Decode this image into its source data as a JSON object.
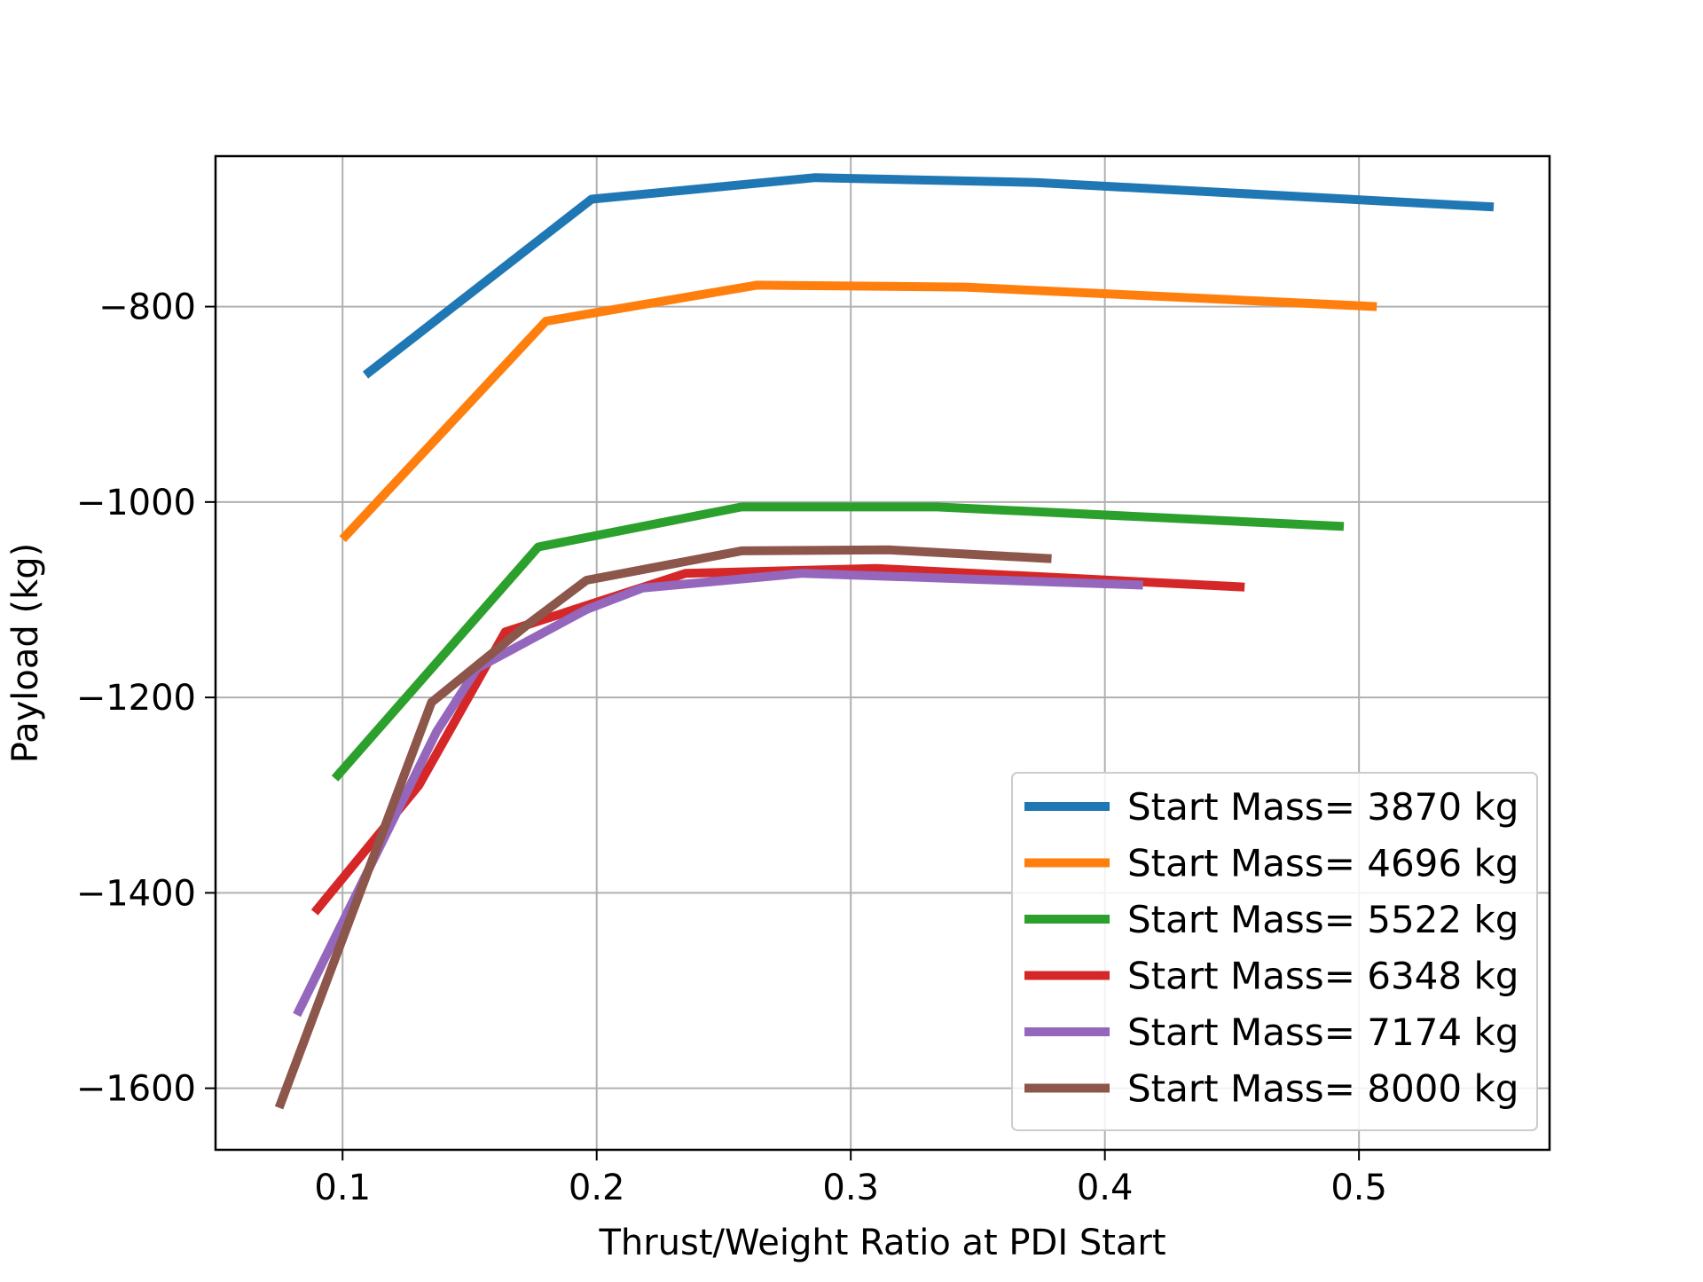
{
  "chart_data": {
    "type": "line",
    "title": "",
    "xlabel": "Thrust/Weight Ratio at PDI Start",
    "ylabel": "Payload (kg)",
    "xlim": [
      0.05,
      0.575
    ],
    "ylim": [
      -1663,
      -646
    ],
    "xticks": [
      0.1,
      0.2,
      0.3,
      0.4,
      0.5
    ],
    "xtick_labels": [
      "0.1",
      "0.2",
      "0.3",
      "0.4",
      "0.5"
    ],
    "yticks": [
      -1600,
      -1400,
      -1200,
      -1000,
      -800
    ],
    "ytick_labels": [
      "−1600",
      "−1400",
      "−1200",
      "−1000",
      "−800"
    ],
    "grid": true,
    "legend_position": "lower-right",
    "series": [
      {
        "name": "Start Mass= 3870 kg",
        "color": "#1f77b4",
        "points": [
          [
            0.109,
            -870
          ],
          [
            0.198,
            -690
          ],
          [
            0.286,
            -668
          ],
          [
            0.373,
            -673
          ],
          [
            0.553,
            -698
          ]
        ]
      },
      {
        "name": "Start Mass= 4696 kg",
        "color": "#ff7f0e",
        "points": [
          [
            0.1,
            -1038
          ],
          [
            0.18,
            -815
          ],
          [
            0.2,
            -806
          ],
          [
            0.263,
            -778
          ],
          [
            0.345,
            -780
          ],
          [
            0.507,
            -800
          ]
        ]
      },
      {
        "name": "Start Mass= 5522 kg",
        "color": "#2ca02c",
        "points": [
          [
            0.097,
            -1283
          ],
          [
            0.177,
            -1046
          ],
          [
            0.257,
            -1005
          ],
          [
            0.334,
            -1005
          ],
          [
            0.494,
            -1025
          ]
        ]
      },
      {
        "name": "Start Mass= 6348 kg",
        "color": "#d62728",
        "points": [
          [
            0.089,
            -1420
          ],
          [
            0.13,
            -1290
          ],
          [
            0.164,
            -1133
          ],
          [
            0.235,
            -1073
          ],
          [
            0.31,
            -1068
          ],
          [
            0.455,
            -1087
          ]
        ]
      },
      {
        "name": "Start Mass= 7174 kg",
        "color": "#9467bd",
        "points": [
          [
            0.082,
            -1525
          ],
          [
            0.137,
            -1235
          ],
          [
            0.153,
            -1170
          ],
          [
            0.196,
            -1110
          ],
          [
            0.218,
            -1088
          ],
          [
            0.281,
            -1073
          ],
          [
            0.415,
            -1085
          ]
        ]
      },
      {
        "name": "Start Mass= 8000 kg",
        "color": "#8c564b",
        "points": [
          [
            0.075,
            -1620
          ],
          [
            0.135,
            -1205
          ],
          [
            0.173,
            -1125
          ],
          [
            0.196,
            -1080
          ],
          [
            0.257,
            -1050
          ],
          [
            0.315,
            -1049
          ],
          [
            0.379,
            -1058
          ]
        ]
      }
    ]
  }
}
